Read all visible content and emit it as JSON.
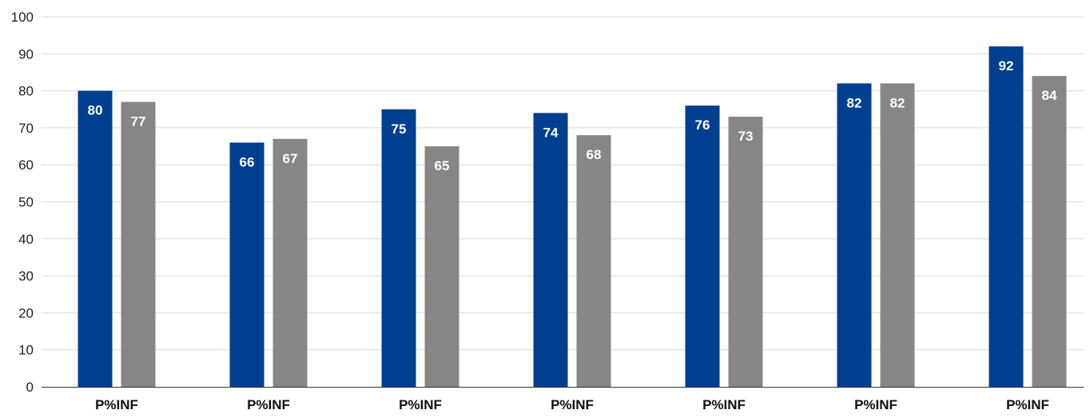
{
  "chart_data": {
    "type": "bar",
    "categories": [
      "P%INF",
      "P%INF",
      "P%INF",
      "P%INF",
      "P%INF",
      "P%INF",
      "P%INF"
    ],
    "series": [
      {
        "values": [
          80,
          66,
          75,
          74,
          76,
          82,
          92
        ],
        "color": "#003f8f"
      },
      {
        "values": [
          77,
          67,
          65,
          68,
          73,
          82,
          84
        ],
        "color": "#868686"
      }
    ],
    "ylim": [
      0,
      100
    ],
    "yticks": [
      0,
      10,
      20,
      30,
      40,
      50,
      60,
      70,
      80,
      90,
      100
    ],
    "grid": true,
    "data_labels": true,
    "title": "",
    "xlabel": "",
    "ylabel": ""
  }
}
